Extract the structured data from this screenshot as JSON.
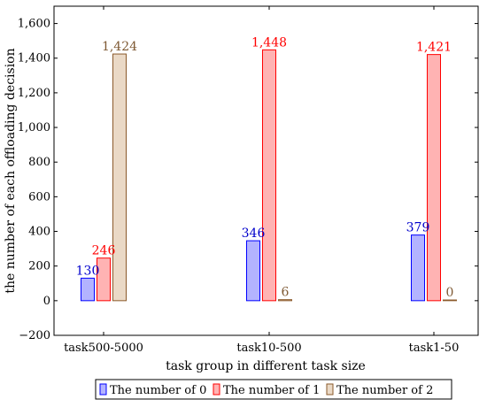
{
  "chart_data": {
    "type": "bar",
    "categories": [
      "task500-5000",
      "task10-500",
      "task1-50"
    ],
    "series": [
      {
        "name": "The number of 0",
        "values": [
          130,
          346,
          379
        ],
        "fill": "#b3b3ff",
        "stroke": "#0000ff",
        "label_color": "#0000cc"
      },
      {
        "name": "The number of 1",
        "values": [
          246,
          1448,
          1421
        ],
        "fill": "#ffb3b3",
        "stroke": "#ff0000",
        "label_color": "#ff0000"
      },
      {
        "name": "The number of 2",
        "values": [
          1424,
          6,
          0
        ],
        "fill": "#ead9c6",
        "stroke": "#8b5a2b",
        "label_color": "#7f5a34"
      }
    ],
    "data_labels": [
      [
        "130",
        "346",
        "379"
      ],
      [
        "246",
        "1,448",
        "1,421"
      ],
      [
        "1,424",
        "6",
        "0"
      ]
    ],
    "xlabel": "task group in different task size",
    "ylabel": "the number of each offloading decision",
    "ylim": [
      -200,
      1700
    ],
    "yticks": [
      -200,
      0,
      200,
      400,
      600,
      800,
      1000,
      1200,
      1400,
      1600
    ],
    "ytick_labels": [
      "−200",
      "0",
      "200",
      "400",
      "600",
      "800",
      "1,000",
      "1,200",
      "1,400",
      "1,600"
    ],
    "grid": false,
    "legend_position": "bottom"
  }
}
